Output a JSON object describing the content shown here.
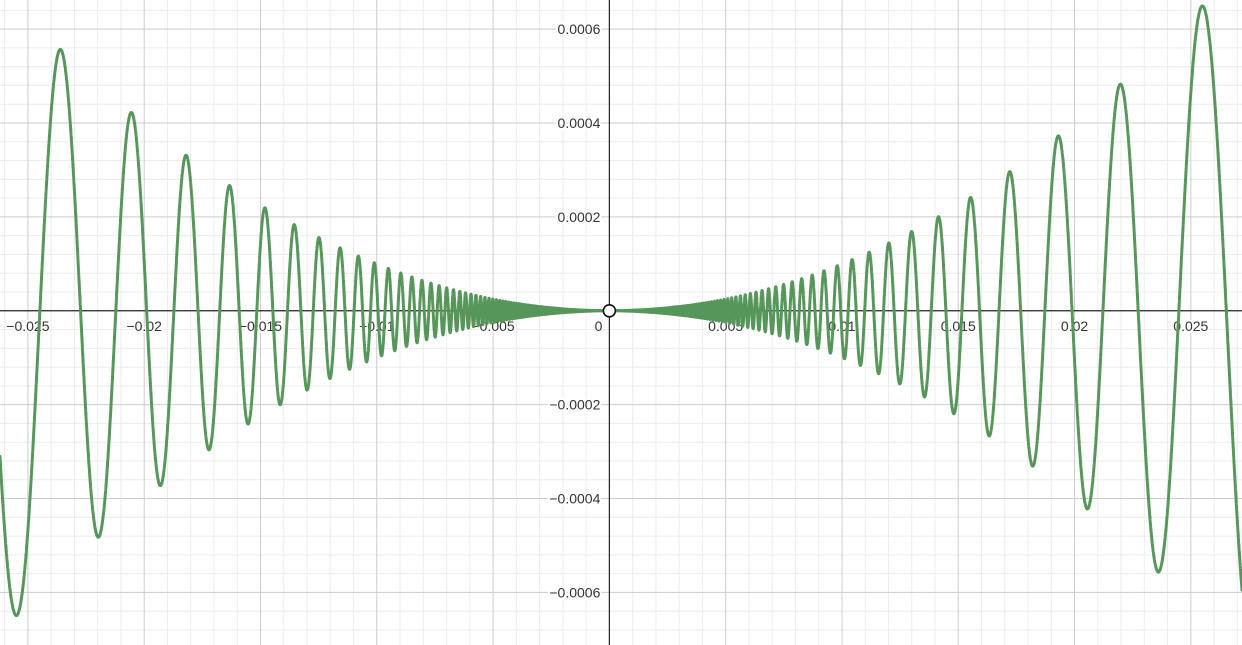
{
  "chart_data": {
    "type": "line",
    "title": "",
    "xlabel": "",
    "ylabel": "",
    "xlim": [
      -0.0262,
      0.0272
    ],
    "ylim": [
      -0.000712,
      0.000662
    ],
    "grid": true,
    "x_ticks": [
      {
        "value": -0.025,
        "label": "−0.025"
      },
      {
        "value": -0.02,
        "label": "−0.02"
      },
      {
        "value": -0.015,
        "label": "−0.015"
      },
      {
        "value": -0.01,
        "label": "−0.01"
      },
      {
        "value": -0.005,
        "label": "−0.005"
      },
      {
        "value": 0,
        "label": "0"
      },
      {
        "value": 0.005,
        "label": "0.005"
      },
      {
        "value": 0.01,
        "label": "0.01"
      },
      {
        "value": 0.015,
        "label": "0.015"
      },
      {
        "value": 0.02,
        "label": "0.02"
      },
      {
        "value": 0.025,
        "label": "0.025"
      }
    ],
    "y_ticks": [
      {
        "value": 0.0006,
        "label": "0.0006"
      },
      {
        "value": 0.0004,
        "label": "0.0004"
      },
      {
        "value": 0.0002,
        "label": "0.0002"
      },
      {
        "value": -0.0002,
        "label": "−0.0002"
      },
      {
        "value": -0.0004,
        "label": "−0.0004"
      },
      {
        "value": -0.0006,
        "label": "−0.0006"
      }
    ],
    "series": [
      {
        "color": "#56965a",
        "function": "y = x^2 * sin(1/x)",
        "sample_extrema": [
          {
            "x": -0.0262,
            "y": -0.000653
          },
          {
            "x": -0.0236,
            "y": 0.000556
          },
          {
            "x": -0.0205,
            "y": 0.00042
          },
          {
            "x": -0.0181,
            "y": 0.00033
          },
          {
            "x": -0.0162,
            "y": 0.000262
          },
          {
            "x": -0.0146,
            "y": 0.000214
          },
          {
            "x": 0.0146,
            "y": -0.000214
          },
          {
            "x": 0.0162,
            "y": 0.000262
          },
          {
            "x": 0.0181,
            "y": -0.00033
          },
          {
            "x": 0.0205,
            "y": 0.00042
          },
          {
            "x": 0.0236,
            "y": -0.000556
          },
          {
            "x": 0.0255,
            "y": 0.00065
          }
        ]
      }
    ],
    "hole_point": {
      "x": 0,
      "y": 0
    },
    "colors": {
      "curve": "#56965a",
      "major_grid": "#cccccc",
      "minor_grid": "#ececec",
      "axis": "#222222"
    }
  }
}
